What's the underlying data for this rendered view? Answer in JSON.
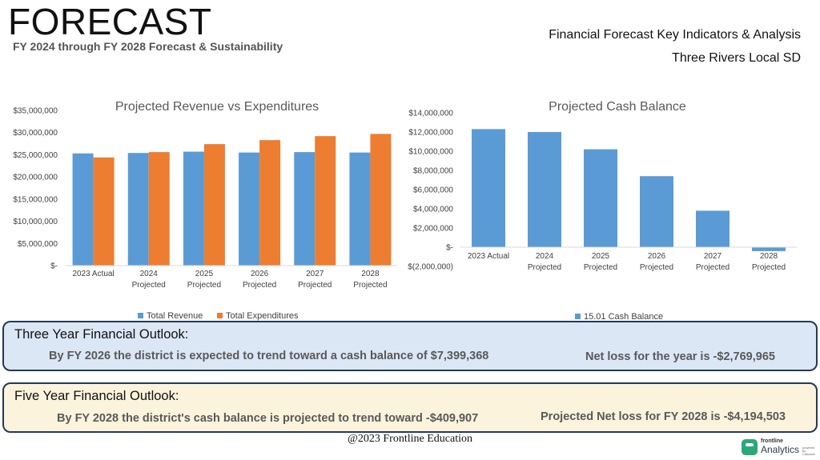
{
  "header": {
    "title": "FORECAST",
    "subtitle": "FY 2024 through FY 2028 Forecast & Sustainability",
    "right_line1": "Financial Forecast Key Indicators & Analysis",
    "right_line2": "Three Rivers Local SD"
  },
  "chart_data": [
    {
      "type": "bar",
      "title": "Projected Revenue vs Expenditures",
      "categories": [
        [
          "2023 Actual"
        ],
        [
          "2024",
          "Projected"
        ],
        [
          "2025",
          "Projected"
        ],
        [
          "2026",
          "Projected"
        ],
        [
          "2027",
          "Projected"
        ],
        [
          "2028",
          "Projected"
        ]
      ],
      "series": [
        {
          "name": "Total Revenue",
          "color": "#5b9bd5",
          "values": [
            25300000,
            25400000,
            25700000,
            25500000,
            25600000,
            25500000
          ]
        },
        {
          "name": "Total Expenditures",
          "color": "#ed7d31",
          "values": [
            24400000,
            25600000,
            27400000,
            28300000,
            29200000,
            29700000
          ]
        }
      ],
      "ylim": [
        0,
        35000000
      ],
      "yticks": [
        0,
        5000000,
        10000000,
        15000000,
        20000000,
        25000000,
        30000000,
        35000000
      ],
      "ytick_labels": [
        "$-",
        "$5,000,000",
        "$10,000,000",
        "$15,000,000",
        "$20,000,000",
        "$25,000,000",
        "$30,000,000",
        "$35,000,000"
      ],
      "grid": false,
      "legend": "bottom"
    },
    {
      "type": "bar",
      "title": "Projected Cash Balance",
      "categories": [
        [
          "2023 Actual"
        ],
        [
          "2024",
          "Projected"
        ],
        [
          "2025",
          "Projected"
        ],
        [
          "2026",
          "Projected"
        ],
        [
          "2027",
          "Projected"
        ],
        [
          "2028",
          "Projected"
        ]
      ],
      "series": [
        {
          "name": "15.01 Cash Balance",
          "color": "#5b9bd5",
          "values": [
            12300000,
            12000000,
            10200000,
            7399368,
            3800000,
            -409907
          ]
        }
      ],
      "ylim": [
        -2000000,
        14000000
      ],
      "yticks": [
        -2000000,
        0,
        2000000,
        4000000,
        6000000,
        8000000,
        10000000,
        12000000,
        14000000
      ],
      "ytick_labels": [
        "$(2,000,000)",
        "$-",
        "$2,000,000",
        "$4,000,000",
        "$6,000,000",
        "$8,000,000",
        "$10,000,000",
        "$12,000,000",
        "$14,000,000"
      ],
      "grid": false,
      "legend": "bottom"
    }
  ],
  "outlook3": {
    "heading": "Three Year Financial Outlook:",
    "main": "By FY 2026 the district is expected to trend toward a cash balance of $7,399,368",
    "side": "Net loss for the year is -$2,769,965"
  },
  "outlook5": {
    "heading": "Five Year Financial Outlook:",
    "main": "By FY 2028 the district's cash balance is projected to trend toward -$409,907",
    "side": "Projected Net loss for FY 2028 is -$4,194,503"
  },
  "footer": "@2023 Frontline Education",
  "logo": {
    "small": "frontline",
    "name": "Analytics",
    "tag": "powered by Cascade",
    "icon": "frontline-logo-icon"
  }
}
